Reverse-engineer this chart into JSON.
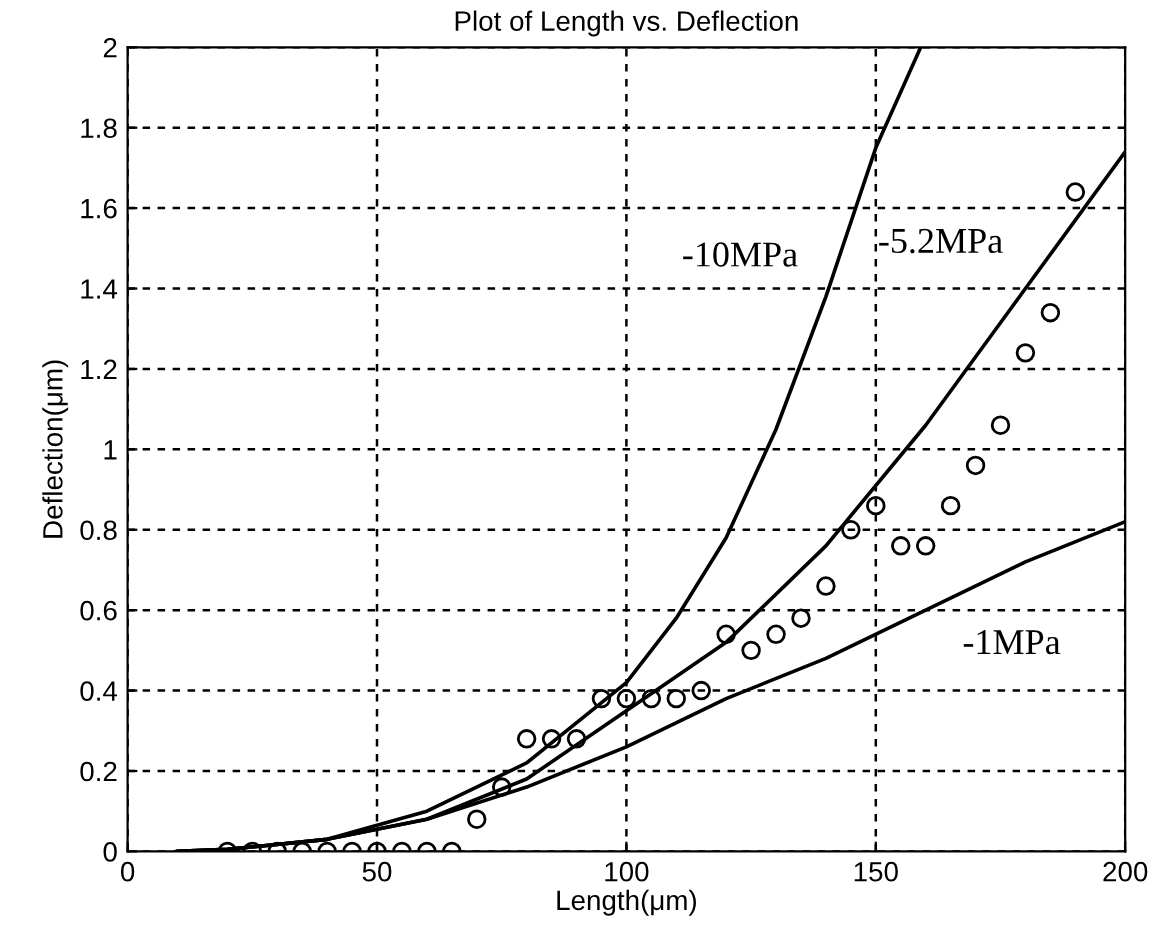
{
  "chart_data": {
    "type": "line",
    "title": "Plot of Length vs. Deflection",
    "xlabel": "Length(μm)",
    "ylabel": "Deflection(μm)",
    "xlim": [
      0,
      200
    ],
    "xticks": [
      0,
      50,
      100,
      150,
      200
    ],
    "ylim": [
      0,
      2
    ],
    "yticks": [
      0,
      0.2,
      0.4,
      0.6,
      0.8,
      1,
      1.2,
      1.4,
      1.6,
      1.8,
      2
    ],
    "grid": true,
    "line_style": "solid",
    "series": [
      {
        "type": "scatter",
        "marker": "circle",
        "color": "#000000",
        "x": [
          20,
          25,
          30,
          35,
          40,
          45,
          50,
          55,
          60,
          65,
          70,
          75,
          80,
          85,
          90,
          95,
          100,
          105,
          110,
          115,
          120,
          125,
          130,
          135,
          140,
          145,
          150,
          155,
          160,
          165,
          170,
          175,
          180,
          185,
          190
        ],
        "values": [
          0,
          0,
          0,
          0,
          0,
          0,
          0,
          0,
          0,
          0,
          0.08,
          0.16,
          0.28,
          0.28,
          0.28,
          0.38,
          0.38,
          0.38,
          0.38,
          0.4,
          0.54,
          0.5,
          0.54,
          0.58,
          0.66,
          0.8,
          0.86,
          0.76,
          0.76,
          0.86,
          0.96,
          1.06,
          1.24,
          1.34,
          1.64
        ]
      },
      {
        "name": "-10MPa",
        "marker": "none",
        "color": "#000000",
        "x": [
          10,
          20,
          40,
          60,
          80,
          100,
          110,
          120,
          130,
          140,
          150,
          159
        ],
        "values": [
          0,
          0.005,
          0.03,
          0.1,
          0.22,
          0.42,
          0.58,
          0.78,
          1.05,
          1.38,
          1.75,
          2.0
        ]
      },
      {
        "name": "-5.2MPa",
        "marker": "none",
        "color": "#000000",
        "x": [
          10,
          20,
          40,
          60,
          80,
          100,
          120,
          140,
          160,
          180,
          200
        ],
        "values": [
          0,
          0.005,
          0.03,
          0.08,
          0.18,
          0.35,
          0.52,
          0.76,
          1.06,
          1.4,
          1.74
        ]
      },
      {
        "name": "-1MPa",
        "marker": "none",
        "color": "#000000",
        "x": [
          10,
          20,
          40,
          60,
          80,
          100,
          120,
          140,
          160,
          180,
          200
        ],
        "values": [
          0,
          0.005,
          0.03,
          0.08,
          0.16,
          0.26,
          0.38,
          0.48,
          0.6,
          0.72,
          0.82
        ]
      }
    ]
  }
}
